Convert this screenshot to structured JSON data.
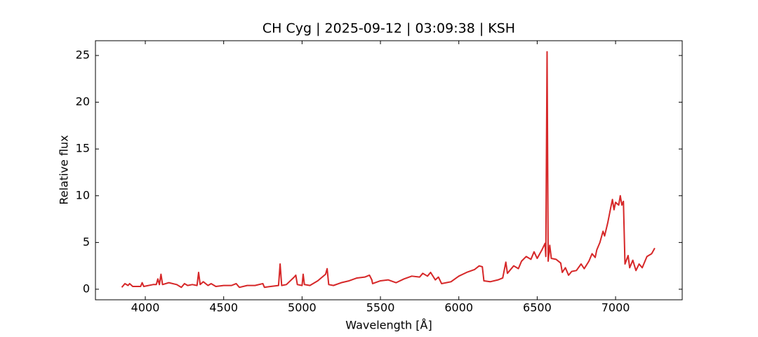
{
  "chart_data": {
    "type": "line",
    "title": "CH Cyg | 2025-09-12 | 03:09:38 | KSH",
    "x_label": "Wavelength [Å]",
    "y_label": "Relative flux",
    "xlim": [
      3682,
      7425
    ],
    "ylim": [
      -1.13,
      26.58
    ],
    "xticks": [
      4000,
      4500,
      5000,
      5500,
      6000,
      6500,
      7000
    ],
    "yticks": [
      0,
      5,
      10,
      15,
      20,
      25
    ],
    "grid": false,
    "series": [
      {
        "name": "CH Cyg",
        "color": "#d62728",
        "x": [
          3850,
          3870,
          3890,
          3900,
          3920,
          3970,
          3980,
          3990,
          4050,
          4070,
          4080,
          4090,
          4100,
          4110,
          4150,
          4200,
          4230,
          4250,
          4270,
          4300,
          4330,
          4340,
          4350,
          4370,
          4400,
          4420,
          4450,
          4500,
          4550,
          4580,
          4600,
          4650,
          4700,
          4750,
          4760,
          4800,
          4850,
          4860,
          4870,
          4900,
          4950,
          4960,
          4970,
          5000,
          5007,
          5015,
          5050,
          5100,
          5150,
          5160,
          5170,
          5200,
          5250,
          5300,
          5350,
          5400,
          5430,
          5445,
          5450,
          5500,
          5550,
          5600,
          5650,
          5700,
          5750,
          5770,
          5800,
          5820,
          5850,
          5870,
          5890,
          5950,
          6000,
          6050,
          6100,
          6130,
          6150,
          6160,
          6200,
          6250,
          6280,
          6300,
          6310,
          6350,
          6380,
          6400,
          6430,
          6460,
          6480,
          6500,
          6530,
          6550,
          6555,
          6563,
          6570,
          6580,
          6590,
          6620,
          6650,
          6660,
          6680,
          6700,
          6720,
          6750,
          6780,
          6800,
          6830,
          6850,
          6870,
          6880,
          6900,
          6920,
          6930,
          6950,
          6970,
          6980,
          6990,
          7000,
          7020,
          7030,
          7040,
          7050,
          7060,
          7080,
          7090,
          7110,
          7130,
          7150,
          7170,
          7200,
          7230,
          7250
        ],
        "values": [
          0.2,
          0.6,
          0.4,
          0.6,
          0.3,
          0.3,
          0.7,
          0.3,
          0.5,
          0.5,
          1.1,
          0.5,
          1.6,
          0.5,
          0.7,
          0.5,
          0.2,
          0.6,
          0.4,
          0.5,
          0.4,
          1.8,
          0.5,
          0.8,
          0.4,
          0.6,
          0.3,
          0.4,
          0.4,
          0.6,
          0.2,
          0.4,
          0.4,
          0.6,
          0.2,
          0.3,
          0.4,
          2.7,
          0.4,
          0.5,
          1.3,
          1.5,
          0.5,
          0.4,
          1.6,
          0.5,
          0.4,
          0.9,
          1.6,
          2.2,
          0.5,
          0.4,
          0.7,
          0.9,
          1.2,
          1.3,
          1.5,
          1.0,
          0.6,
          0.9,
          1.0,
          0.7,
          1.1,
          1.4,
          1.3,
          1.7,
          1.4,
          1.8,
          1.0,
          1.3,
          0.6,
          0.8,
          1.4,
          1.8,
          2.1,
          2.5,
          2.4,
          0.9,
          0.8,
          1.0,
          1.2,
          2.9,
          1.7,
          2.5,
          2.2,
          3.0,
          3.5,
          3.2,
          4.0,
          3.3,
          4.2,
          4.9,
          3.5,
          25.4,
          3.0,
          4.7,
          3.3,
          3.2,
          2.8,
          1.8,
          2.3,
          1.5,
          1.9,
          2.0,
          2.7,
          2.2,
          3.0,
          3.8,
          3.4,
          4.2,
          5.0,
          6.2,
          5.7,
          7.1,
          8.8,
          9.6,
          8.5,
          9.3,
          9.0,
          10.0,
          9.0,
          9.4,
          2.7,
          3.6,
          2.3,
          3.1,
          2.0,
          2.7,
          2.3,
          3.5,
          3.8,
          4.4
        ]
      }
    ]
  }
}
